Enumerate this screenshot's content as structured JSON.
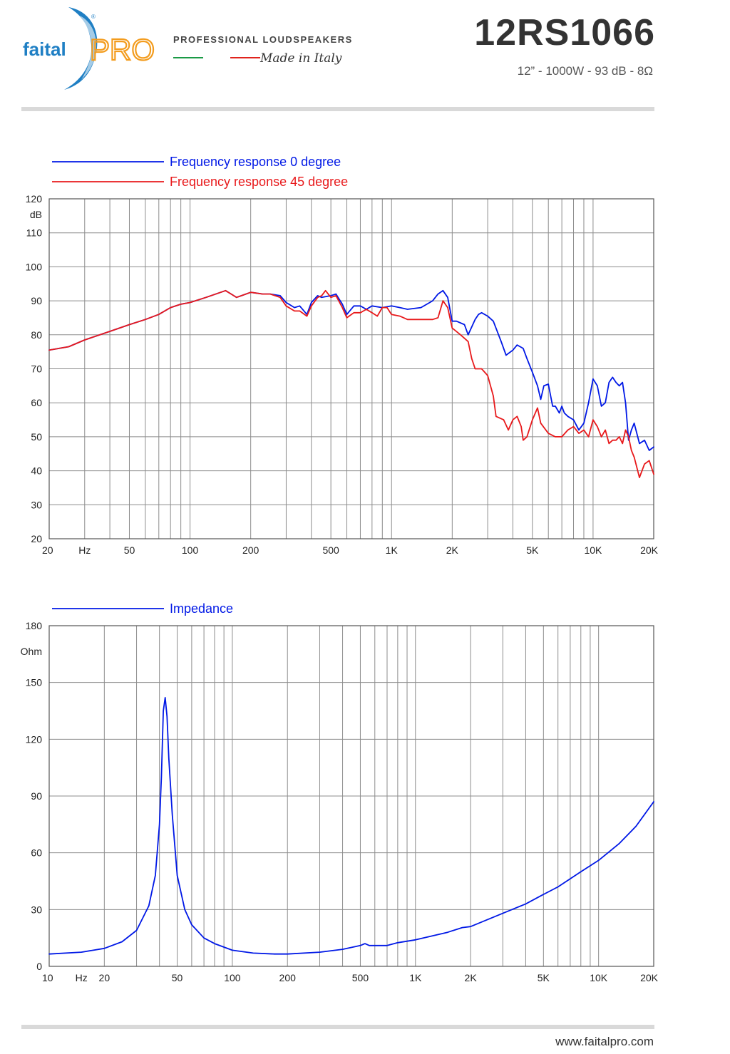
{
  "header": {
    "logo": {
      "name": "faitalPRO",
      "left": "faital",
      "right": "PRO"
    },
    "tagline": "Professional Loudspeakers",
    "made_in": "Made in Italy",
    "model": "12RS1066",
    "specs": "12” - 1000W - 93 dB - 8Ω"
  },
  "footer": {
    "url": "www.faitalpro.com"
  },
  "colors": {
    "blue": "#0018e6",
    "red": "#e8191b",
    "grid": "#8c8c8c",
    "rule": "#d9d9d9",
    "brand_blue": "#1f7fc4",
    "brand_orange": "#f39c1e"
  },
  "chart_data": [
    {
      "type": "line",
      "x_scale": "log",
      "xlim": [
        20,
        20000
      ],
      "ylim": [
        20,
        120
      ],
      "grid": true,
      "legend_placement": "top-left",
      "ylabel": "dB",
      "xunit": "Hz",
      "x_ticks": [
        {
          "v": 20,
          "label": "20"
        },
        {
          "v": 30,
          "label": "Hz"
        },
        {
          "v": 50,
          "label": "50"
        },
        {
          "v": 100,
          "label": "100"
        },
        {
          "v": 200,
          "label": "200"
        },
        {
          "v": 500,
          "label": "500"
        },
        {
          "v": 1000,
          "label": "1K"
        },
        {
          "v": 2000,
          "label": "2K"
        },
        {
          "v": 5000,
          "label": "5K"
        },
        {
          "v": 10000,
          "label": "10K"
        },
        {
          "v": 20000,
          "label": "20K"
        }
      ],
      "y_ticks": [
        20,
        30,
        40,
        50,
        60,
        70,
        80,
        90,
        100,
        110,
        120
      ],
      "series": [
        {
          "name": "Frequency response 0 degree",
          "color": "#0018e6",
          "points": [
            [
              20,
              75.5
            ],
            [
              25,
              76.5
            ],
            [
              30,
              78.5
            ],
            [
              40,
              81
            ],
            [
              50,
              83
            ],
            [
              60,
              84.5
            ],
            [
              70,
              86
            ],
            [
              80,
              88
            ],
            [
              90,
              89
            ],
            [
              100,
              89.5
            ],
            [
              120,
              91
            ],
            [
              150,
              93
            ],
            [
              160,
              92
            ],
            [
              170,
              91
            ],
            [
              180,
              91.5
            ],
            [
              200,
              92.5
            ],
            [
              230,
              92
            ],
            [
              250,
              92
            ],
            [
              280,
              91.5
            ],
            [
              300,
              89.5
            ],
            [
              330,
              88
            ],
            [
              350,
              88.5
            ],
            [
              380,
              86
            ],
            [
              400,
              89.5
            ],
            [
              430,
              91.5
            ],
            [
              450,
              91
            ],
            [
              500,
              91.5
            ],
            [
              530,
              92
            ],
            [
              570,
              89
            ],
            [
              600,
              86
            ],
            [
              650,
              88.5
            ],
            [
              700,
              88.5
            ],
            [
              750,
              87.5
            ],
            [
              800,
              88.5
            ],
            [
              900,
              88
            ],
            [
              1000,
              88.5
            ],
            [
              1100,
              88
            ],
            [
              1200,
              87.5
            ],
            [
              1400,
              88
            ],
            [
              1600,
              90
            ],
            [
              1700,
              92
            ],
            [
              1800,
              93
            ],
            [
              1900,
              91
            ],
            [
              2000,
              84
            ],
            [
              2100,
              84
            ],
            [
              2300,
              83
            ],
            [
              2400,
              80
            ],
            [
              2600,
              84.5
            ],
            [
              2700,
              86
            ],
            [
              2800,
              86.5
            ],
            [
              3000,
              85.5
            ],
            [
              3200,
              84
            ],
            [
              3500,
              78
            ],
            [
              3700,
              74
            ],
            [
              4000,
              75.5
            ],
            [
              4200,
              77
            ],
            [
              4500,
              76
            ],
            [
              4700,
              73
            ],
            [
              5000,
              69
            ],
            [
              5300,
              65
            ],
            [
              5500,
              61
            ],
            [
              5700,
              65
            ],
            [
              6000,
              65.5
            ],
            [
              6300,
              59
            ],
            [
              6500,
              59
            ],
            [
              6800,
              57
            ],
            [
              7000,
              59
            ],
            [
              7200,
              57
            ],
            [
              7500,
              56
            ],
            [
              8000,
              55
            ],
            [
              8500,
              52
            ],
            [
              9000,
              54
            ],
            [
              9500,
              60
            ],
            [
              10000,
              67
            ],
            [
              10500,
              65
            ],
            [
              11000,
              59
            ],
            [
              11500,
              60
            ],
            [
              12000,
              66
            ],
            [
              12500,
              67.5
            ],
            [
              13000,
              66
            ],
            [
              13500,
              65
            ],
            [
              14000,
              66
            ],
            [
              14500,
              60
            ],
            [
              15000,
              49
            ],
            [
              15500,
              52
            ],
            [
              16000,
              54
            ],
            [
              17000,
              48
            ],
            [
              18000,
              49
            ],
            [
              19000,
              46
            ],
            [
              20000,
              47
            ]
          ]
        },
        {
          "name": "Frequency response 45 degree",
          "color": "#e8191b",
          "points": [
            [
              20,
              75.5
            ],
            [
              25,
              76.5
            ],
            [
              30,
              78.5
            ],
            [
              40,
              81
            ],
            [
              50,
              83
            ],
            [
              60,
              84.5
            ],
            [
              70,
              86
            ],
            [
              80,
              88
            ],
            [
              90,
              89
            ],
            [
              100,
              89.5
            ],
            [
              120,
              91
            ],
            [
              150,
              93
            ],
            [
              160,
              92
            ],
            [
              170,
              91
            ],
            [
              180,
              91.5
            ],
            [
              200,
              92.5
            ],
            [
              230,
              92
            ],
            [
              250,
              92
            ],
            [
              280,
              91
            ],
            [
              300,
              88.5
            ],
            [
              330,
              87
            ],
            [
              350,
              87
            ],
            [
              380,
              85.5
            ],
            [
              400,
              88.5
            ],
            [
              430,
              91
            ],
            [
              450,
              91.5
            ],
            [
              470,
              93
            ],
            [
              500,
              91
            ],
            [
              530,
              91.5
            ],
            [
              570,
              88
            ],
            [
              600,
              85
            ],
            [
              650,
              86.5
            ],
            [
              700,
              86.5
            ],
            [
              750,
              87.5
            ],
            [
              800,
              86.5
            ],
            [
              850,
              85.5
            ],
            [
              900,
              88
            ],
            [
              950,
              88
            ],
            [
              1000,
              86
            ],
            [
              1100,
              85.5
            ],
            [
              1200,
              84.5
            ],
            [
              1400,
              84.5
            ],
            [
              1600,
              84.5
            ],
            [
              1700,
              85
            ],
            [
              1800,
              90
            ],
            [
              1900,
              88
            ],
            [
              2000,
              82
            ],
            [
              2200,
              80
            ],
            [
              2400,
              78
            ],
            [
              2500,
              73
            ],
            [
              2600,
              70
            ],
            [
              2800,
              70
            ],
            [
              3000,
              68
            ],
            [
              3200,
              62
            ],
            [
              3300,
              56
            ],
            [
              3600,
              55
            ],
            [
              3800,
              52
            ],
            [
              4000,
              55
            ],
            [
              4200,
              56
            ],
            [
              4400,
              53
            ],
            [
              4500,
              49
            ],
            [
              4700,
              50
            ],
            [
              5000,
              55
            ],
            [
              5300,
              58.5
            ],
            [
              5500,
              54
            ],
            [
              6000,
              51
            ],
            [
              6500,
              50
            ],
            [
              7000,
              50
            ],
            [
              7500,
              52
            ],
            [
              8000,
              53
            ],
            [
              8500,
              51
            ],
            [
              9000,
              52
            ],
            [
              9500,
              50
            ],
            [
              10000,
              55
            ],
            [
              10500,
              53
            ],
            [
              11000,
              50
            ],
            [
              11500,
              52
            ],
            [
              12000,
              48
            ],
            [
              12500,
              49
            ],
            [
              13000,
              49
            ],
            [
              13500,
              50
            ],
            [
              14000,
              48
            ],
            [
              14500,
              52
            ],
            [
              15000,
              50
            ],
            [
              15500,
              46
            ],
            [
              16000,
              44
            ],
            [
              17000,
              38
            ],
            [
              18000,
              42
            ],
            [
              19000,
              43
            ],
            [
              20000,
              39
            ]
          ]
        }
      ]
    },
    {
      "type": "line",
      "x_scale": "log",
      "xlim": [
        10,
        20000
      ],
      "ylim": [
        0,
        180
      ],
      "grid": true,
      "legend_placement": "top-left",
      "ylabel": "Ohm",
      "xunit": "Hz",
      "x_ticks": [
        {
          "v": 10,
          "label": "10"
        },
        {
          "v": 15,
          "label": "Hz"
        },
        {
          "v": 20,
          "label": "20"
        },
        {
          "v": 50,
          "label": "50"
        },
        {
          "v": 100,
          "label": "100"
        },
        {
          "v": 200,
          "label": "200"
        },
        {
          "v": 500,
          "label": "500"
        },
        {
          "v": 1000,
          "label": "1K"
        },
        {
          "v": 2000,
          "label": "2K"
        },
        {
          "v": 5000,
          "label": "5K"
        },
        {
          "v": 10000,
          "label": "10K"
        },
        {
          "v": 20000,
          "label": "20K"
        }
      ],
      "y_ticks": [
        0,
        30,
        60,
        90,
        120,
        150,
        180
      ],
      "series": [
        {
          "name": "Impedance",
          "color": "#0018e6",
          "points": [
            [
              10,
              6.5
            ],
            [
              15,
              7.5
            ],
            [
              20,
              9.5
            ],
            [
              25,
              13
            ],
            [
              30,
              19
            ],
            [
              35,
              32
            ],
            [
              38,
              48
            ],
            [
              40,
              75
            ],
            [
              41,
              100
            ],
            [
              42,
              135
            ],
            [
              43,
              142
            ],
            [
              44,
              132
            ],
            [
              45,
              110
            ],
            [
              47,
              80
            ],
            [
              50,
              48
            ],
            [
              55,
              30
            ],
            [
              60,
              22
            ],
            [
              70,
              15
            ],
            [
              80,
              12
            ],
            [
              100,
              8.5
            ],
            [
              130,
              7
            ],
            [
              170,
              6.5
            ],
            [
              200,
              6.5
            ],
            [
              300,
              7.5
            ],
            [
              400,
              9
            ],
            [
              500,
              11
            ],
            [
              530,
              12
            ],
            [
              560,
              11
            ],
            [
              600,
              11
            ],
            [
              700,
              11
            ],
            [
              800,
              12.5
            ],
            [
              1000,
              14
            ],
            [
              1500,
              18
            ],
            [
              1800,
              20.5
            ],
            [
              2000,
              21
            ],
            [
              3000,
              28
            ],
            [
              4000,
              33
            ],
            [
              5000,
              38
            ],
            [
              6000,
              42
            ],
            [
              8000,
              50
            ],
            [
              10000,
              56
            ],
            [
              13000,
              65
            ],
            [
              16000,
              74
            ],
            [
              20000,
              87
            ]
          ]
        }
      ]
    }
  ]
}
